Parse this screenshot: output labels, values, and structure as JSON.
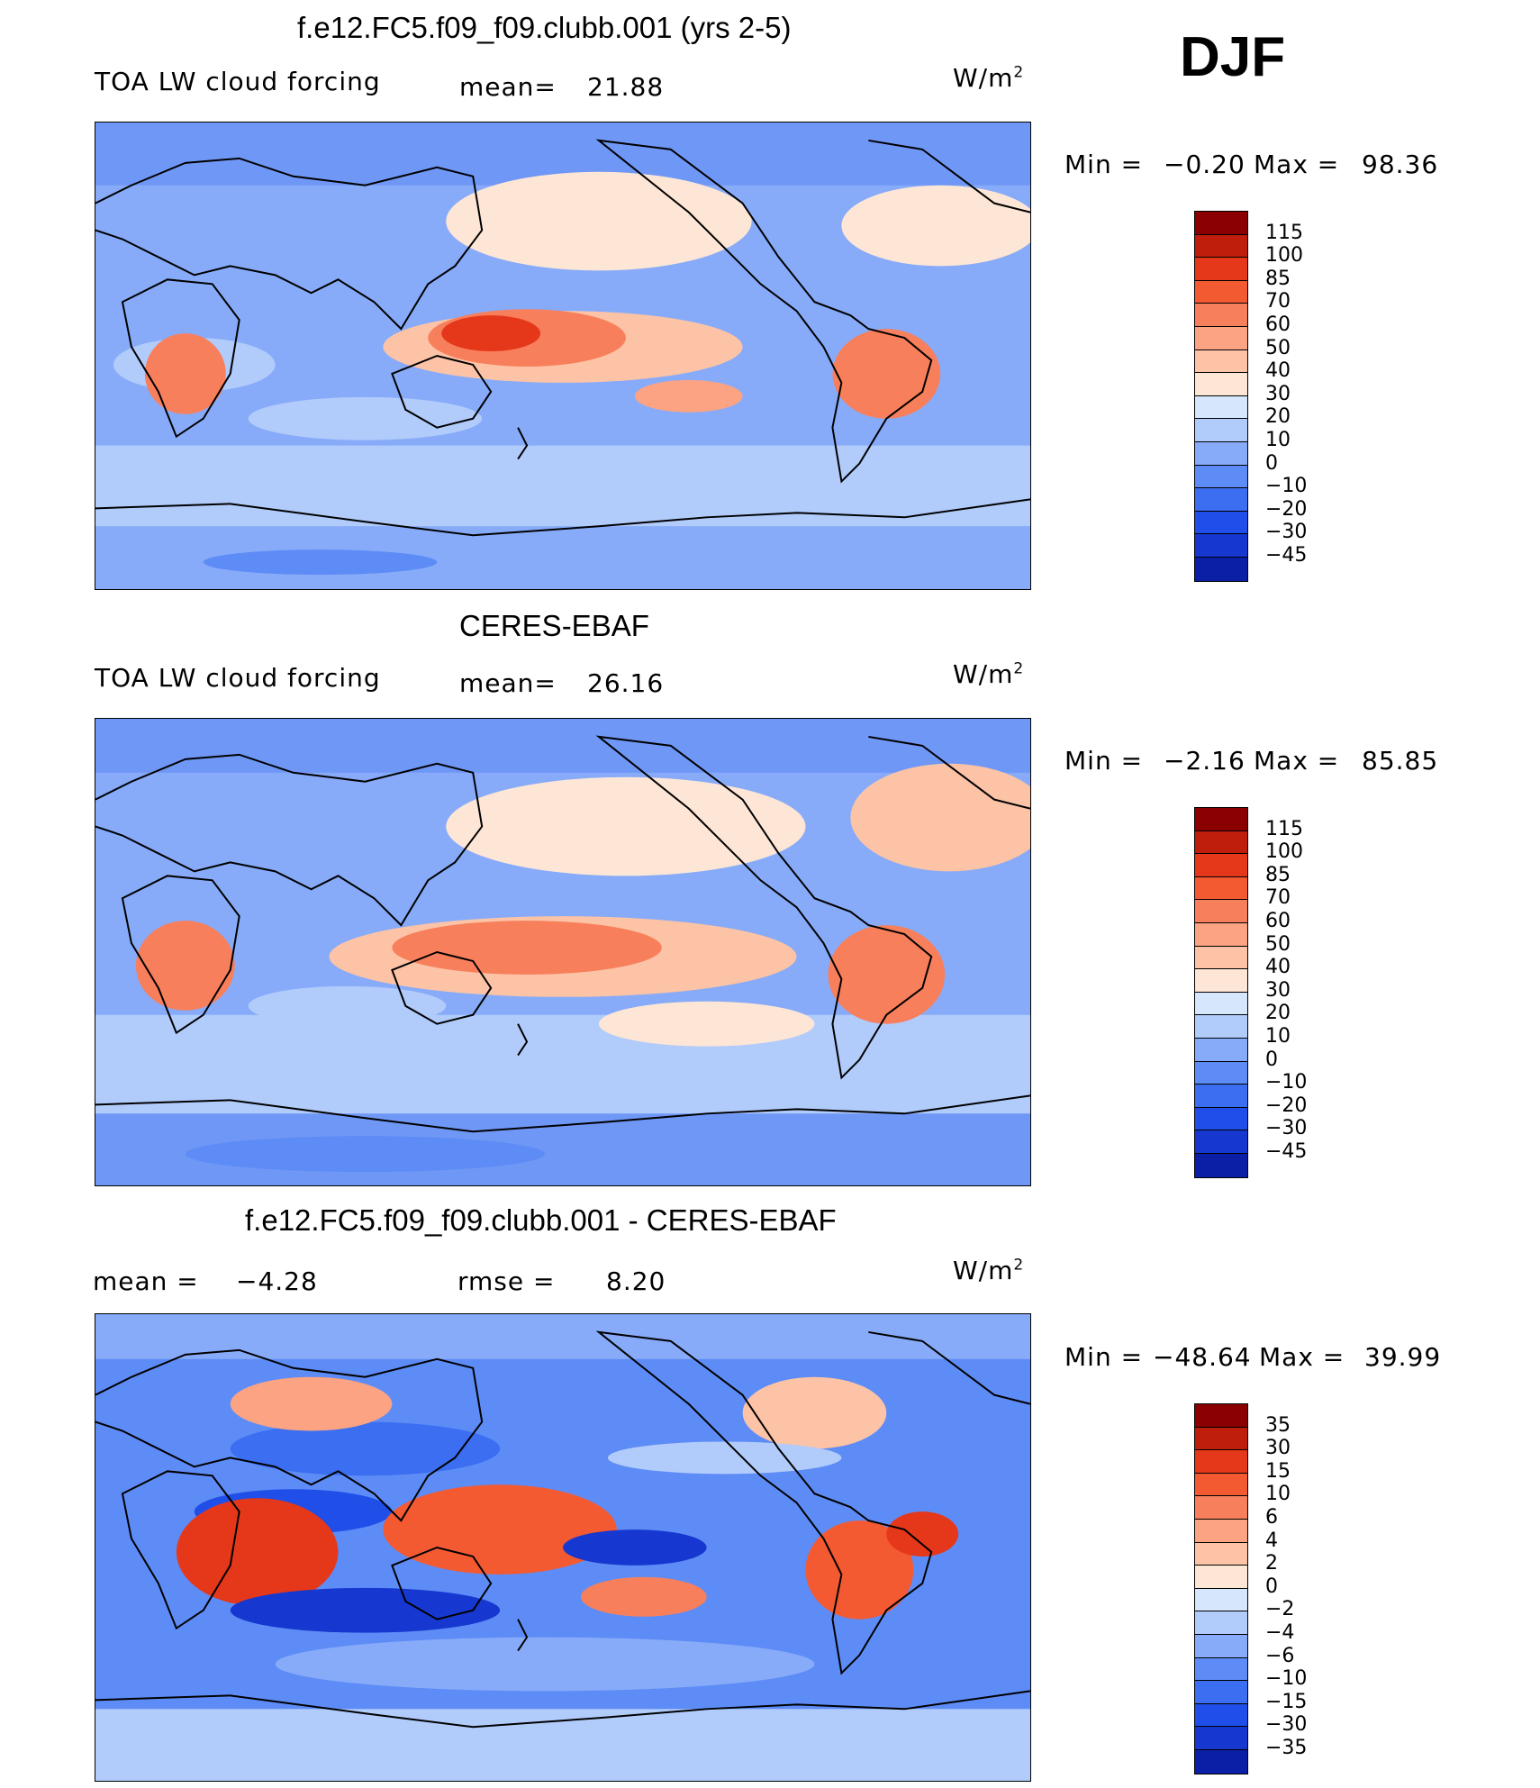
{
  "season": "DJF",
  "colors": {
    "standard": [
      "#000080",
      "#0a1fa5",
      "#1638d0",
      "#1f4fe8",
      "#3b6ef0",
      "#5e8cf6",
      "#87abf9",
      "#b1cbfb",
      "#d6e6fc",
      "#fde6d6",
      "#fcc3a6",
      "#fba383",
      "#f87f5b",
      "#f35a32",
      "#e5381a",
      "#c01e0d",
      "#8b0000"
    ]
  },
  "panels": [
    {
      "title": "f.e12.FC5.f09_f09.clubb.001 (yrs 2-5)",
      "left_label": "TOA LW cloud forcing",
      "mean_label": "mean=",
      "mean_value": "21.88",
      "units": "W/m",
      "units_exp": "2",
      "min_label": "Min =",
      "min_value": "−0.20",
      "max_label": "Max =",
      "max_value": "98.36",
      "levels": [
        "115",
        "100",
        "85",
        "70",
        "60",
        "50",
        "40",
        "30",
        "20",
        "10",
        "0",
        "−10",
        "−20",
        "−30",
        "−45"
      ]
    },
    {
      "title": "CERES-EBAF",
      "left_label": "TOA LW cloud forcing",
      "mean_label": "mean=",
      "mean_value": "26.16",
      "units": "W/m",
      "units_exp": "2",
      "min_label": "Min =",
      "min_value": "−2.16",
      "max_label": "Max =",
      "max_value": "85.85",
      "levels": [
        "115",
        "100",
        "85",
        "70",
        "60",
        "50",
        "40",
        "30",
        "20",
        "10",
        "0",
        "−10",
        "−20",
        "−30",
        "−45"
      ]
    },
    {
      "title": "f.e12.FC5.f09_f09.clubb.001 - CERES-EBAF",
      "left_label": "mean =",
      "mean_label": "−4.28",
      "rmse_label": "rmse =",
      "rmse_value": "8.20",
      "units": "W/m",
      "units_exp": "2",
      "min_label": "Min =",
      "min_value": "−48.64",
      "max_label": "Max =",
      "max_value": "39.99",
      "levels": [
        "35",
        "30",
        "15",
        "10",
        "6",
        "4",
        "2",
        "0",
        "−2",
        "−4",
        "−6",
        "−10",
        "−15",
        "−30",
        "−35"
      ]
    }
  ]
}
